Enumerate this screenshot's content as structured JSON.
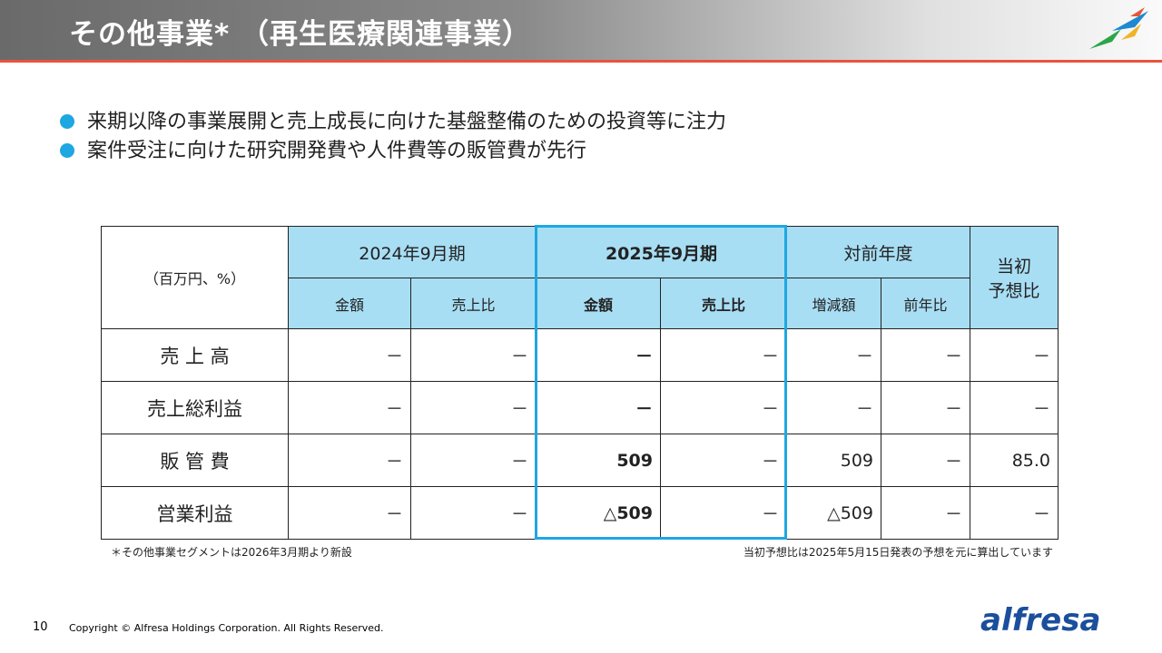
{
  "header": {
    "title": "その他事業* （再生医療関連事業）"
  },
  "bullets": [
    "来期以降の事業展開と売上成長に向けた基盤整備のための投資等に注力",
    "案件受注に向けた研究開発費や人件費等の販管費が先行"
  ],
  "table": {
    "unit": "（百万円、%）",
    "groups": [
      "2024年9月期",
      "2025年9月期",
      "対前年度"
    ],
    "forecast": [
      "当初",
      "予想比"
    ],
    "subheaders": [
      "金額",
      "売上比",
      "金額",
      "売上比",
      "増減額",
      "前年比"
    ],
    "rows": [
      [
        "売 上 高",
        "－",
        "－",
        "－",
        "－",
        "－",
        "－",
        "－"
      ],
      [
        "売上総利益",
        "－",
        "－",
        "－",
        "－",
        "－",
        "－",
        "－"
      ],
      [
        "販 管 費",
        "－",
        "－",
        "509",
        "－",
        "509",
        "－",
        "85.0"
      ],
      [
        "営業利益",
        "－",
        "－",
        "△509",
        "－",
        "△509",
        "－",
        "－"
      ]
    ]
  },
  "notes": {
    "left": "＊その他事業セグメントは2026年3月期より新設",
    "right": "当初予想比は2025年5月15日発表の予想を元に算出しています"
  },
  "footer": {
    "page": "10",
    "copyright": "Copyright © Alfresa Holdings Corporation. All Rights Reserved.",
    "logo": "alfresa"
  }
}
